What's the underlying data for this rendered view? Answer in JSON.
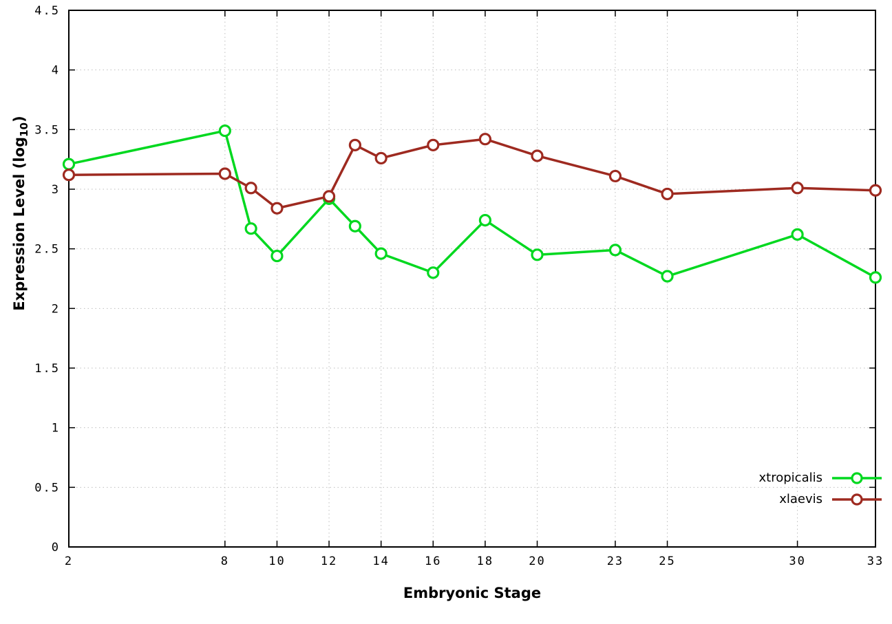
{
  "page": {
    "background": "#ffffff"
  },
  "chart_data": {
    "type": "line",
    "title": "",
    "xlabel": "Embryonic Stage",
    "ylabel": "Expression Level (log10)",
    "ylabel_rich": {
      "pre": "Expression Level (log",
      "sub": "10",
      "post": ")"
    },
    "xlim": [
      2,
      33
    ],
    "ylim": [
      0,
      4.5
    ],
    "grid": true,
    "grid_style": "dotted",
    "grid_color": "#bdbdbd",
    "axis_color": "#000000",
    "legend_position": "inside-bottom-right",
    "x": [
      2,
      8,
      9,
      10,
      12,
      13,
      14,
      16,
      18,
      20,
      23,
      25,
      30,
      33
    ],
    "x_tick_values": [
      2,
      8,
      10,
      12,
      14,
      16,
      18,
      20,
      23,
      25,
      30,
      33
    ],
    "x_tick_labels": [
      "2",
      "8",
      "10",
      "12",
      "14",
      "16",
      "18",
      "20",
      "23",
      "25",
      "30",
      "33"
    ],
    "y_tick_values": [
      0,
      0.5,
      1,
      1.5,
      2,
      2.5,
      3,
      3.5,
      4,
      4.5
    ],
    "y_tick_labels": [
      "0",
      "0.5",
      "1",
      "1.5",
      "2",
      "2.5",
      "3",
      "3.5",
      "4",
      "4.5"
    ],
    "series": [
      {
        "name": "xtropicalis",
        "color": "#00d81f",
        "marker": "open-circle",
        "values": [
          3.21,
          3.49,
          2.67,
          2.44,
          2.92,
          2.69,
          2.46,
          2.3,
          2.74,
          2.45,
          2.49,
          2.27,
          2.62,
          2.26
        ]
      },
      {
        "name": "xlaevis",
        "color": "#9e2a20",
        "marker": "open-circle",
        "values": [
          3.12,
          3.13,
          3.01,
          2.84,
          2.94,
          3.37,
          3.26,
          3.37,
          3.42,
          3.28,
          3.11,
          2.96,
          3.01,
          2.99
        ]
      }
    ]
  }
}
